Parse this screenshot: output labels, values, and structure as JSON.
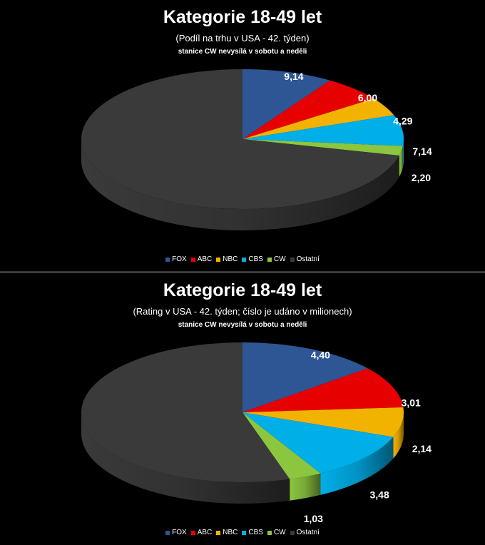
{
  "colors": {
    "FOX": "#2e5594",
    "ABC": "#e60000",
    "NBC": "#f2b200",
    "CBS": "#00aee8",
    "CW": "#8cc63f",
    "Ostatní": "#3a3a3a"
  },
  "chart_data": [
    {
      "type": "pie",
      "title": "Kategorie 18-49 let",
      "subtitle": "(Podíl na trhu v USA - 42. týden)",
      "note": "stanice CW nevysílá  v sobotu a neděli",
      "labels": [
        "FOX",
        "ABC",
        "NBC",
        "CBS",
        "CW",
        "Ostatní"
      ],
      "values": [
        9.14,
        6.0,
        4.29,
        7.14,
        2.2,
        71.23
      ],
      "data_labels": [
        "9,14",
        "6,00",
        "4,29",
        "7,14",
        "2,20",
        ""
      ],
      "legend_position": "bottom"
    },
    {
      "type": "pie",
      "title": "Kategorie 18-49 let",
      "subtitle": "(Rating v USA - 42. týden;  číslo je udáno v milionech)",
      "note": "stanice CW nevysílá  v sobotu a neděli",
      "labels": [
        "FOX",
        "ABC",
        "NBC",
        "CBS",
        "CW",
        "Ostatní"
      ],
      "values": [
        4.4,
        3.01,
        2.14,
        3.48,
        1.03,
        17.0
      ],
      "data_labels": [
        "4,40",
        "3,01",
        "2,14",
        "3,48",
        "1,03",
        ""
      ],
      "legend_position": "bottom"
    }
  ]
}
